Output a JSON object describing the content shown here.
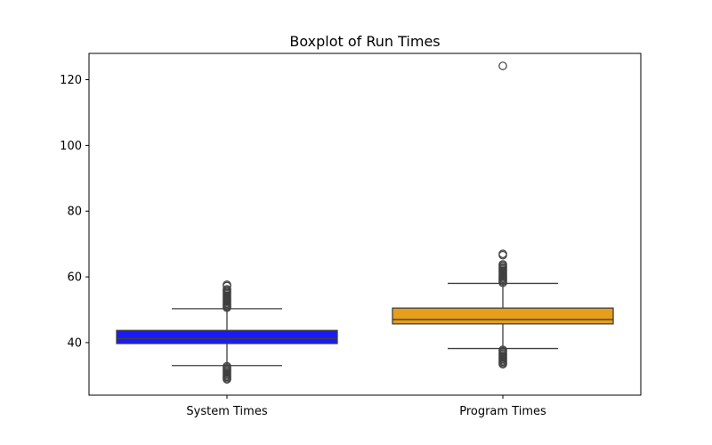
{
  "chart_data": {
    "type": "boxplot",
    "title": "Boxplot of Run Times",
    "xlabel": "",
    "ylabel": "",
    "ylim": [
      24,
      128
    ],
    "yticks": [
      40,
      60,
      80,
      100,
      120
    ],
    "grid": false,
    "legend": "none",
    "categories": [
      "System Times",
      "Program Times"
    ],
    "boxes": [
      {
        "category": "System Times",
        "color": "#1a1aff",
        "whisker_low": 33,
        "q1": 39.7,
        "median": 41.2,
        "q3": 43.7,
        "whisker_high": 50.3,
        "outliers": [
          28.8,
          29.2,
          29.6,
          30.0,
          30.4,
          30.8,
          31.2,
          31.6,
          32.0,
          32.4,
          32.8,
          50.6,
          51.0,
          51.4,
          51.8,
          52.2,
          52.6,
          53.0,
          53.4,
          53.8,
          54.2,
          54.6,
          55.0,
          55.4,
          55.8,
          56.2,
          57.2,
          57.6
        ]
      },
      {
        "category": "Program Times",
        "color": "#e69f1a",
        "whisker_low": 38.2,
        "q1": 45.7,
        "median": 47.0,
        "q3": 50.5,
        "whisker_high": 58.0,
        "outliers": [
          33.4,
          33.8,
          34.2,
          34.6,
          35.0,
          35.4,
          35.8,
          36.2,
          36.6,
          37.0,
          37.4,
          37.8,
          58.2,
          58.6,
          59.0,
          59.4,
          59.8,
          60.2,
          60.6,
          61.0,
          61.4,
          61.8,
          62.2,
          62.6,
          63.0,
          63.4,
          63.8,
          66.6,
          67.0,
          124.2
        ]
      }
    ]
  }
}
